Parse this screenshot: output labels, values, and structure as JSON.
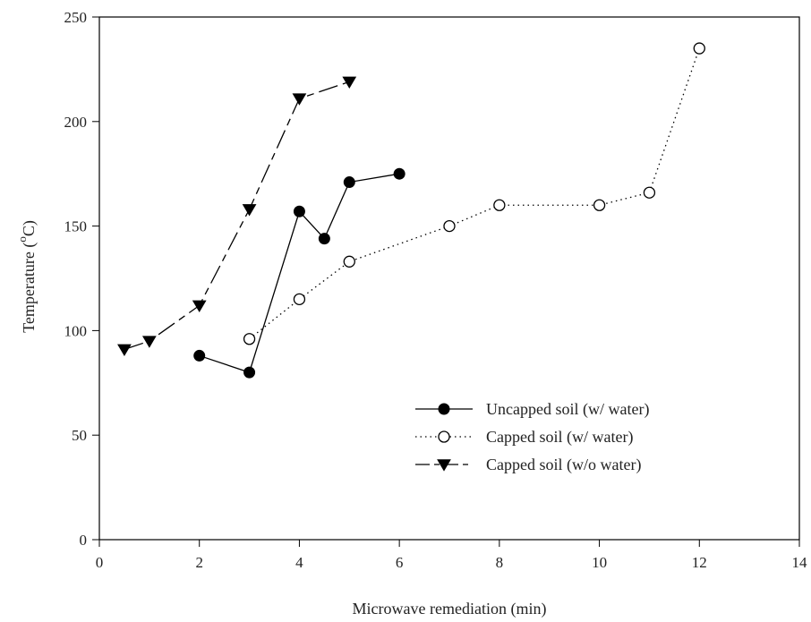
{
  "chart_data": {
    "type": "line",
    "xlabel": "Microwave remediation (min)",
    "ylabel_main": "Temperature (",
    "ylabel_sup": "o",
    "ylabel_unit": "C)",
    "xlim": [
      0,
      14
    ],
    "ylim": [
      0,
      250
    ],
    "xticks": [
      "0",
      "2",
      "4",
      "6",
      "8",
      "10",
      "12",
      "14"
    ],
    "yticks": [
      "0",
      "50",
      "100",
      "150",
      "200",
      "250"
    ],
    "grid": false,
    "legend_position": "bottom-right",
    "series": [
      {
        "name": "Uncapped soil (w/ water)",
        "marker": "filled-circle",
        "line_style": "solid",
        "x": [
          2,
          3,
          4,
          4.5,
          5,
          6
        ],
        "y": [
          88,
          80,
          157,
          144,
          171,
          175
        ]
      },
      {
        "name": "Capped soil (w/ water)",
        "marker": "open-circle",
        "line_style": "dotted",
        "x": [
          3,
          4,
          5,
          7,
          8,
          10,
          11,
          12
        ],
        "y": [
          96,
          115,
          133,
          150,
          160,
          160,
          166,
          235
        ]
      },
      {
        "name": "Capped soil (w/o water)",
        "marker": "filled-triangle-down",
        "line_style": "dashed",
        "x": [
          0.5,
          1,
          2,
          3,
          4,
          5
        ],
        "y": [
          91,
          95,
          112,
          158,
          211,
          219
        ]
      }
    ]
  }
}
